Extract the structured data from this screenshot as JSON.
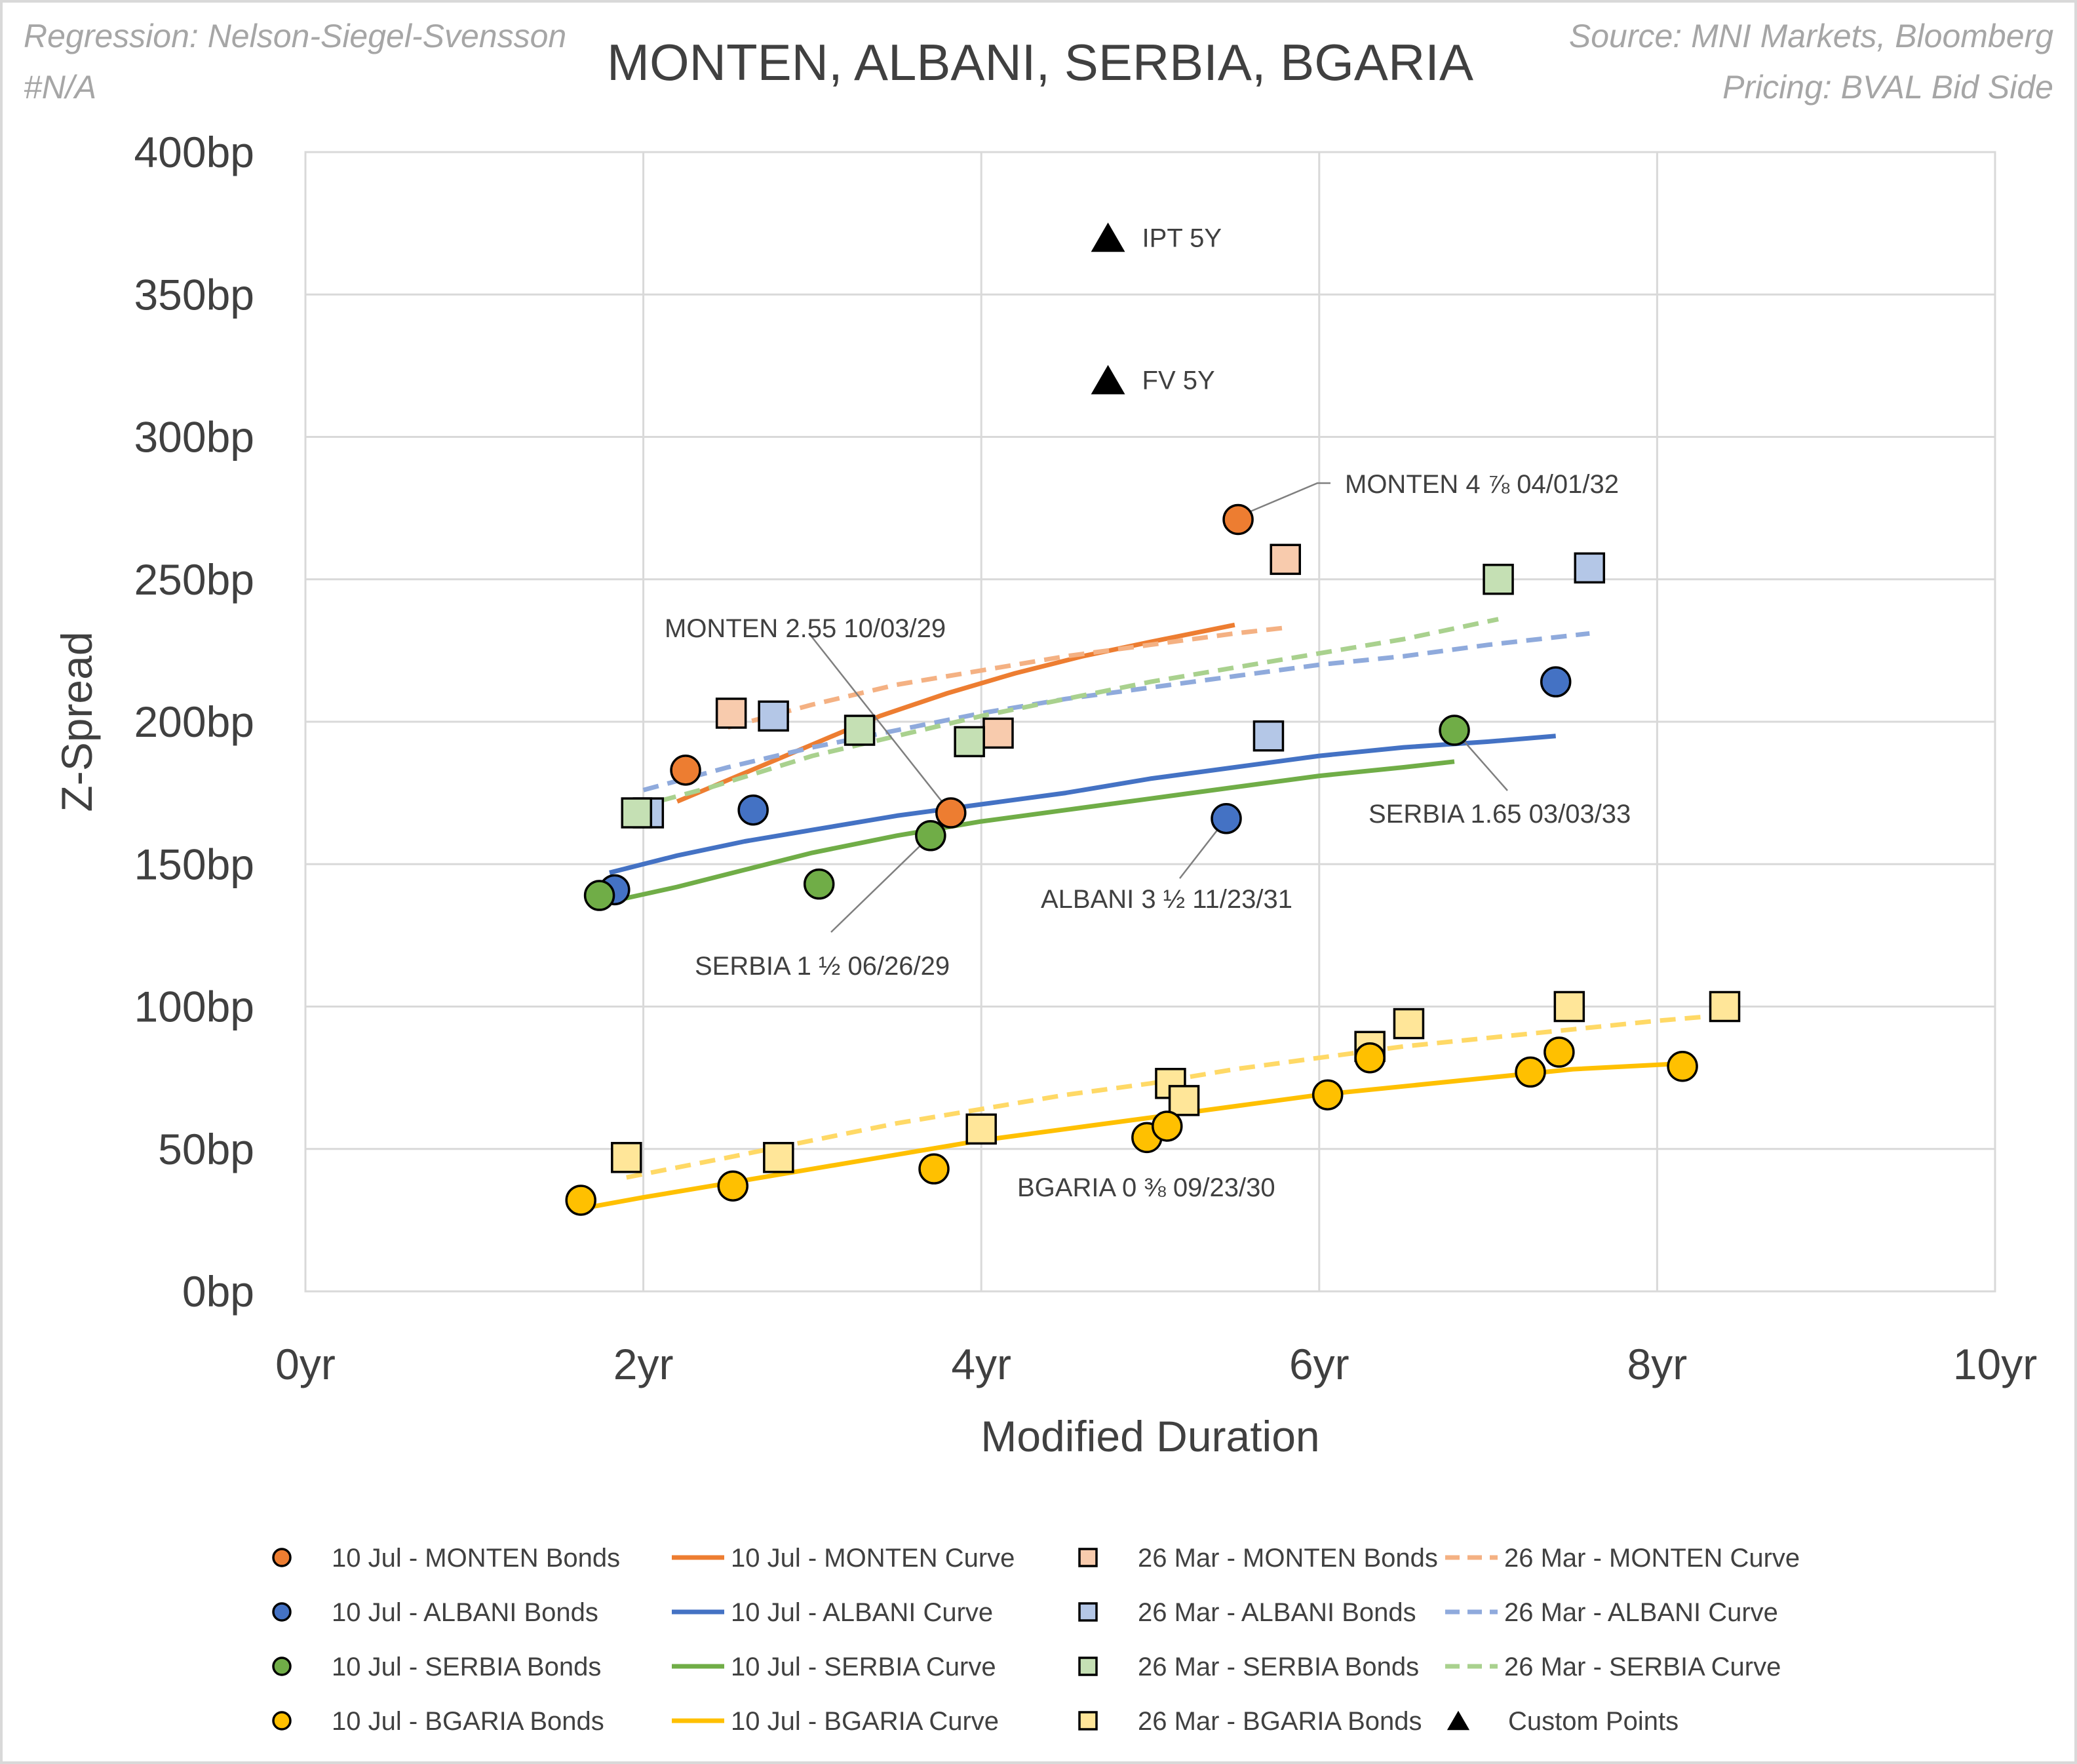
{
  "header": {
    "left_line1": "Regression: Nelson-Siegel-Svensson",
    "left_line2": "#N/A",
    "right_line1": "Source: MNI Markets, Bloomberg",
    "right_line2": "Pricing: BVAL Bid Side"
  },
  "colors": {
    "monten": "#ED7D31",
    "monten_light": "#F8CBAD",
    "albani": "#4472C4",
    "albani_light": "#B4C7E7",
    "serbia": "#70AD47",
    "serbia_light": "#C5E0B4",
    "bgaria": "#FFC000",
    "bgaria_light": "#FFE699",
    "black": "#000000"
  },
  "chart_data": {
    "type": "scatter",
    "title": "MONTEN, ALBANI, SERBIA, BGARIA",
    "xlabel": "Modified Duration",
    "ylabel": "Z-Spread",
    "xlim": [
      0,
      10
    ],
    "ylim": [
      0,
      400
    ],
    "x_ticks": [
      0,
      2,
      4,
      6,
      8,
      10
    ],
    "x_tick_labels": [
      "0yr",
      "2yr",
      "4yr",
      "6yr",
      "8yr",
      "10yr"
    ],
    "y_ticks": [
      0,
      50,
      100,
      150,
      200,
      250,
      300,
      350,
      400
    ],
    "y_tick_labels": [
      "0bp",
      "50bp",
      "100bp",
      "150bp",
      "200bp",
      "250bp",
      "300bp",
      "350bp",
      "400bp"
    ],
    "grid": true,
    "legend_position": "bottom",
    "series": [
      {
        "id": "monten_bonds_jul",
        "name": "10 Jul - MONTEN  Bonds",
        "kind": "points",
        "marker": "circle",
        "color": "#ED7D31",
        "points": [
          [
            2.25,
            183
          ],
          [
            3.82,
            168
          ],
          [
            5.52,
            271
          ]
        ]
      },
      {
        "id": "monten_curve_jul",
        "name": "10 Jul - MONTEN  Curve",
        "kind": "line",
        "dash": false,
        "color": "#ED7D31",
        "points": [
          [
            2.2,
            172
          ],
          [
            2.6,
            182
          ],
          [
            3.0,
            192
          ],
          [
            3.4,
            202
          ],
          [
            3.8,
            210
          ],
          [
            4.2,
            217
          ],
          [
            4.6,
            223
          ],
          [
            5.0,
            228
          ],
          [
            5.5,
            234
          ]
        ]
      },
      {
        "id": "monten_bonds_mar",
        "name": "26 Mar - MONTEN Bonds",
        "kind": "points",
        "marker": "square",
        "color": "#F8CBAD",
        "points": [
          [
            2.52,
            203
          ],
          [
            4.1,
            196
          ],
          [
            5.8,
            257
          ]
        ]
      },
      {
        "id": "monten_curve_mar",
        "name": "26 Mar - MONTEN Curve",
        "kind": "line",
        "dash": true,
        "color": "#F4B183",
        "points": [
          [
            2.5,
            198
          ],
          [
            3.0,
            206
          ],
          [
            3.5,
            213
          ],
          [
            4.0,
            218
          ],
          [
            4.5,
            223
          ],
          [
            5.0,
            227
          ],
          [
            5.5,
            231
          ],
          [
            5.8,
            233
          ]
        ]
      },
      {
        "id": "albani_bonds_jul",
        "name": "10 Jul - ALBANI Bonds",
        "kind": "points",
        "marker": "circle",
        "color": "#4472C4",
        "points": [
          [
            1.83,
            141
          ],
          [
            2.65,
            169
          ],
          [
            5.45,
            166
          ],
          [
            7.4,
            214
          ]
        ]
      },
      {
        "id": "albani_curve_jul",
        "name": "10 Jul - ALBANI Curve",
        "kind": "line",
        "dash": false,
        "color": "#4472C4",
        "points": [
          [
            1.8,
            147
          ],
          [
            2.2,
            153
          ],
          [
            2.6,
            158
          ],
          [
            3.0,
            162
          ],
          [
            3.5,
            167
          ],
          [
            4.0,
            171
          ],
          [
            4.5,
            175
          ],
          [
            5.0,
            180
          ],
          [
            5.5,
            184
          ],
          [
            6.0,
            188
          ],
          [
            6.5,
            191
          ],
          [
            7.0,
            193
          ],
          [
            7.4,
            195
          ]
        ]
      },
      {
        "id": "albani_bonds_mar",
        "name": "26 Mar - ALBANI Bonds",
        "kind": "points",
        "marker": "square",
        "color": "#B4C7E7",
        "points": [
          [
            2.03,
            168
          ],
          [
            2.77,
            202
          ],
          [
            5.7,
            195
          ],
          [
            7.6,
            254
          ]
        ]
      },
      {
        "id": "albani_curve_mar",
        "name": "26 Mar - ALBANI Curve",
        "kind": "line",
        "dash": true,
        "color": "#8FAADC",
        "points": [
          [
            2.0,
            176
          ],
          [
            2.5,
            184
          ],
          [
            3.0,
            191
          ],
          [
            3.5,
            197
          ],
          [
            4.0,
            203
          ],
          [
            4.5,
            208
          ],
          [
            5.0,
            212
          ],
          [
            5.5,
            216
          ],
          [
            6.0,
            220
          ],
          [
            6.5,
            223
          ],
          [
            7.0,
            227
          ],
          [
            7.6,
            231
          ]
        ]
      },
      {
        "id": "serbia_bonds_jul",
        "name": "10 Jul - SERBIA Bonds",
        "kind": "points",
        "marker": "circle",
        "color": "#70AD47",
        "points": [
          [
            1.74,
            139
          ],
          [
            3.04,
            143
          ],
          [
            3.7,
            160
          ],
          [
            6.8,
            197
          ]
        ]
      },
      {
        "id": "serbia_curve_jul",
        "name": "10 Jul - SERBIA Curve",
        "kind": "line",
        "dash": false,
        "color": "#70AD47",
        "points": [
          [
            1.74,
            136
          ],
          [
            2.2,
            142
          ],
          [
            2.6,
            148
          ],
          [
            3.0,
            154
          ],
          [
            3.5,
            160
          ],
          [
            4.0,
            165
          ],
          [
            4.5,
            169
          ],
          [
            5.0,
            173
          ],
          [
            5.5,
            177
          ],
          [
            6.0,
            181
          ],
          [
            6.5,
            184
          ],
          [
            6.8,
            186
          ]
        ]
      },
      {
        "id": "serbia_bonds_mar",
        "name": "26 Mar - SERBIA Bonds",
        "kind": "points",
        "marker": "square",
        "color": "#C5E0B4",
        "points": [
          [
            1.96,
            168
          ],
          [
            3.28,
            197
          ],
          [
            3.93,
            193
          ],
          [
            7.06,
            250
          ]
        ]
      },
      {
        "id": "serbia_curve_mar",
        "name": "26 Mar - SERBIA Curve",
        "kind": "line",
        "dash": true,
        "color": "#A9D18E",
        "points": [
          [
            1.96,
            170
          ],
          [
            2.4,
            177
          ],
          [
            3.0,
            188
          ],
          [
            3.5,
            195
          ],
          [
            4.0,
            202
          ],
          [
            4.5,
            208
          ],
          [
            5.0,
            214
          ],
          [
            5.5,
            219
          ],
          [
            6.0,
            224
          ],
          [
            6.5,
            229
          ],
          [
            7.06,
            236
          ]
        ]
      },
      {
        "id": "bgaria_bonds_jul",
        "name": "10 Jul - BGARIA Bonds",
        "kind": "points",
        "marker": "circle",
        "color": "#FFC000",
        "points": [
          [
            1.63,
            32
          ],
          [
            2.53,
            37
          ],
          [
            3.72,
            43
          ],
          [
            4.98,
            54
          ],
          [
            5.1,
            58
          ],
          [
            6.05,
            69
          ],
          [
            6.3,
            82
          ],
          [
            7.25,
            77
          ],
          [
            7.42,
            84
          ],
          [
            8.15,
            79
          ]
        ]
      },
      {
        "id": "bgaria_curve_jul",
        "name": "10 Jul - BGARIA Curve",
        "kind": "line",
        "dash": false,
        "color": "#FFC000",
        "points": [
          [
            1.63,
            29
          ],
          [
            2.0,
            33
          ],
          [
            2.5,
            38
          ],
          [
            3.0,
            43
          ],
          [
            3.5,
            48
          ],
          [
            4.0,
            53
          ],
          [
            4.5,
            57
          ],
          [
            5.0,
            61
          ],
          [
            5.5,
            65
          ],
          [
            6.0,
            69
          ],
          [
            6.5,
            72
          ],
          [
            7.0,
            75
          ],
          [
            7.5,
            78
          ],
          [
            8.15,
            80
          ]
        ]
      },
      {
        "id": "bgaria_bonds_mar",
        "name": "26 Mar - BGARIA Bonds",
        "kind": "points",
        "marker": "square",
        "color": "#FFE699",
        "points": [
          [
            1.9,
            47
          ],
          [
            2.8,
            47
          ],
          [
            4.0,
            57
          ],
          [
            5.12,
            73
          ],
          [
            5.2,
            67
          ],
          [
            6.3,
            86
          ],
          [
            6.53,
            94
          ],
          [
            7.48,
            100
          ],
          [
            8.4,
            100
          ]
        ]
      },
      {
        "id": "bgaria_curve_mar",
        "name": "26 Mar - BGARIA Curve",
        "kind": "line",
        "dash": true,
        "color": "#FFD966",
        "in_legend": false,
        "points": [
          [
            1.9,
            40
          ],
          [
            2.5,
            47
          ],
          [
            3.0,
            53
          ],
          [
            3.5,
            59
          ],
          [
            4.0,
            64
          ],
          [
            4.5,
            69
          ],
          [
            5.0,
            73
          ],
          [
            5.5,
            78
          ],
          [
            6.0,
            82
          ],
          [
            6.5,
            86
          ],
          [
            7.0,
            89
          ],
          [
            7.5,
            92
          ],
          [
            8.0,
            95
          ],
          [
            8.4,
            97
          ]
        ]
      },
      {
        "id": "custom_points",
        "name": "Custom Points",
        "kind": "points",
        "marker": "triangle",
        "color": "#000000",
        "points": [
          [
            4.75,
            370
          ],
          [
            4.75,
            320
          ]
        ]
      }
    ],
    "custom_point_labels": [
      "IPT 5Y",
      "FV 5Y"
    ],
    "annotations": [
      {
        "text": "MONTEN 4 ⅞ 04/01/32",
        "target": [
          5.52,
          271
        ]
      },
      {
        "text": "MONTEN 2.55 10/03/29",
        "target": [
          3.82,
          168
        ]
      },
      {
        "text": "SERBIA 1.65 03/03/33",
        "target": [
          6.8,
          197
        ]
      },
      {
        "text": "ALBANI 3 ½ 11/23/31",
        "target": [
          5.45,
          166
        ]
      },
      {
        "text": "SERBIA 1 ½ 06/26/29",
        "target": [
          3.7,
          160
        ]
      },
      {
        "text": "BGARIA 0 ⅜ 09/23/30",
        "target": null
      }
    ]
  }
}
